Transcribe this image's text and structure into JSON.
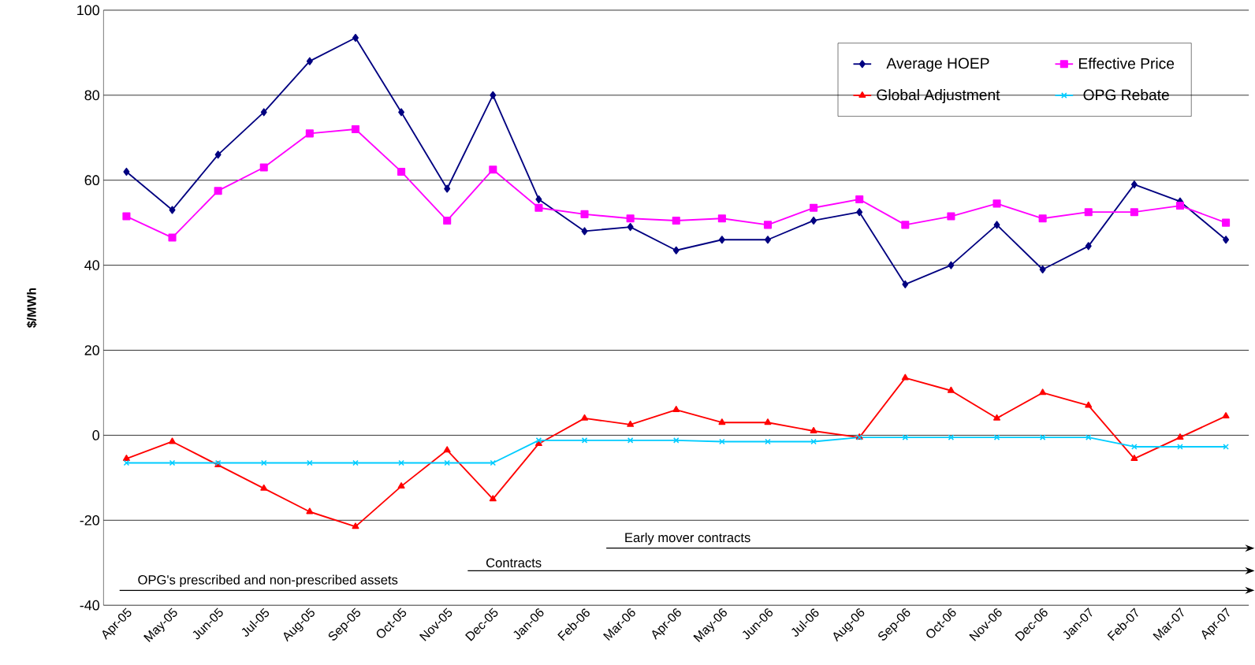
{
  "chart_data": {
    "type": "line",
    "ylabel": "$/MWh",
    "categories": [
      "Apr-05",
      "May-05",
      "Jun-05",
      "Jul-05",
      "Aug-05",
      "Sep-05",
      "Oct-05",
      "Nov-05",
      "Dec-05",
      "Jan-06",
      "Feb-06",
      "Mar-06",
      "Apr-06",
      "May-06",
      "Jun-06",
      "Jul-06",
      "Aug-06",
      "Sep-06",
      "Oct-06",
      "Nov-06",
      "Dec-06",
      "Jan-07",
      "Feb-07",
      "Mar-07",
      "Apr-07"
    ],
    "series": [
      {
        "name": "Average HOEP",
        "color": "#000080",
        "marker": "diamond",
        "values": [
          62,
          53,
          66,
          76,
          88,
          93.5,
          76,
          58,
          80,
          55.5,
          48,
          49,
          43.5,
          46,
          46,
          50.5,
          52.5,
          35.5,
          40,
          49.5,
          39,
          44.5,
          59,
          55,
          46
        ]
      },
      {
        "name": "Effective Price",
        "color": "#ff00ff",
        "marker": "square",
        "values": [
          51.5,
          46.5,
          57.5,
          63,
          71,
          72,
          62,
          50.5,
          62.5,
          53.5,
          52,
          51,
          50.5,
          51,
          49.5,
          53.5,
          55.5,
          49.5,
          51.5,
          54.5,
          51,
          52.5,
          52.5,
          54,
          50
        ]
      },
      {
        "name": "Global Adjustment",
        "color": "#ff0000",
        "marker": "triangle",
        "values": [
          -5.5,
          -1.5,
          -7,
          -12.5,
          -18,
          -21.5,
          -12,
          -3.5,
          -15,
          -2,
          4,
          2.5,
          6,
          3,
          3,
          1,
          -0.5,
          13.5,
          10.5,
          4,
          10,
          7,
          -5.5,
          -0.5,
          4.5
        ]
      },
      {
        "name": "OPG Rebate",
        "color": "#00ccff",
        "marker": "cross",
        "values": [
          -6.5,
          -6.5,
          -6.5,
          -6.5,
          -6.5,
          -6.5,
          -6.5,
          -6.5,
          -6.5,
          -1.2,
          -1.2,
          -1.2,
          -1.2,
          -1.5,
          -1.5,
          -1.5,
          -0.5,
          -0.5,
          -0.5,
          -0.5,
          -0.5,
          -0.5,
          -2.7,
          -2.7,
          -2.7
        ]
      }
    ],
    "ylim": [
      -40,
      100
    ],
    "yticks": [
      -40,
      -20,
      0,
      20,
      40,
      60,
      80,
      100
    ],
    "grid": "y",
    "legend": "top right",
    "annotations": [
      "Early mover contracts",
      "Contracts",
      "OPG's prescribed and non-prescribed assets"
    ]
  }
}
